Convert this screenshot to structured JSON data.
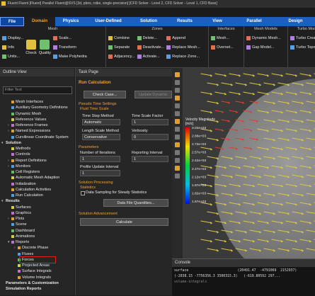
{
  "title_bar": "Fluent Fluent [Fluent] Parallel Fluent@SVS [3d, pbns, rstke, single-precision] [CFD Solver - Level 2, CFD Solver - Level 1, CFD Base]",
  "tabs": [
    "File",
    "Domain",
    "Physics",
    "User-Defined",
    "Solution",
    "Results",
    "View",
    "Parallel",
    "Design"
  ],
  "ribbon": {
    "groups": [
      {
        "title": "Mesh",
        "columns": [
          [
            "Display...",
            "Info",
            "Units..."
          ],
          [
            "Check"
          ],
          [
            "Quality"
          ],
          [
            "Scale...",
            "Transform",
            "Make Polyhedra"
          ]
        ]
      },
      {
        "title": "Zones",
        "columns": [
          [
            "Combine",
            "Separate",
            "Adjacency..."
          ],
          [
            "Delete...",
            "Deactivate...",
            "Activate..."
          ],
          [
            "Append",
            "Replace Mesh...",
            "Replace Zone..."
          ]
        ]
      },
      {
        "title": "Interfaces",
        "columns": [
          [
            "Mesh...",
            "Overset..."
          ]
        ]
      },
      {
        "title": "Mesh Models",
        "columns": [
          [
            "Dynamic Mesh...",
            "Gap Model..."
          ]
        ]
      },
      {
        "title": "Turbo Models",
        "columns": [
          [
            "Turbo Create",
            "Turbo Topology..."
          ]
        ]
      }
    ]
  },
  "outline": {
    "title": "Outline View",
    "filter": "Filter Text",
    "tree": [
      {
        "children": [
          {
            "label": "Mesh Interfaces"
          },
          {
            "label": "Auxiliary Geometry Definitions"
          },
          {
            "label": "Dynamic Mesh"
          },
          {
            "label": "Reference Values"
          },
          {
            "label": "Reference Frames"
          },
          {
            "label": "Named Expressions"
          },
          {
            "label": "Curvilinear Coordinate System"
          }
        ]
      },
      {
        "label": "Solution",
        "children": [
          {
            "label": "Methods"
          },
          {
            "label": "Controls"
          },
          {
            "label": "Report Definitions"
          },
          {
            "label": "Monitors"
          },
          {
            "label": "Cell Registers"
          },
          {
            "label": "Automatic Mesh Adaption"
          },
          {
            "label": "Initialization"
          },
          {
            "label": "Calculation Activities"
          },
          {
            "label": "Run Calculation"
          }
        ]
      },
      {
        "label": "Results",
        "children": [
          {
            "label": "Surfaces"
          },
          {
            "label": "Graphics"
          },
          {
            "label": "Plots"
          },
          {
            "label": "Scene"
          },
          {
            "label": "Dashboard"
          },
          {
            "label": "Animations"
          },
          {
            "label": "Reports",
            "children": [
              {
                "label": "Discrete Phase"
              },
              {
                "label": "Fluxes"
              },
              {
                "label": "Forces"
              },
              {
                "label": "Projected Areas"
              },
              {
                "label": "Surface Integrals"
              },
              {
                "label": "Volume Integrals"
              }
            ]
          }
        ]
      },
      {
        "label": "Parameters & Customization"
      },
      {
        "label": "Simulation Reports"
      }
    ]
  },
  "task_page": {
    "title": "Task Page",
    "heading": "Run Calculation",
    "buttons": [
      "Check Case...",
      "Update Dynamic Mesh..."
    ],
    "pseudo_time": {
      "title": "Pseudo Time Settings",
      "subtitle": "Fluid Time Scale",
      "time_step_method": {
        "label": "Time Step Method",
        "value": "Automatic"
      },
      "time_scale_factor": {
        "label": "Time Scale Factor",
        "value": 1
      },
      "length_scale_method": {
        "label": "Length Scale Method",
        "value": "Conservative"
      },
      "verbosity": {
        "label": "Verbosity",
        "value": 0
      }
    },
    "parameters": {
      "title": "Parameters",
      "iterations": {
        "label": "Number of Iterations",
        "value": 1
      },
      "reporting_interval": {
        "label": "Reporting Interval",
        "value": 1
      },
      "profile_update_interval": {
        "label": "Profile Update Interval",
        "value": 1
      }
    },
    "solution_processing": {
      "title": "Solution Processing",
      "statistics": "Statistics",
      "sampling": "Data Sampling for Steady Statistics",
      "data_file": "Data File Quantities..."
    },
    "solution_advancement": {
      "title": "Solution Advancement",
      "calculate": "Calculate"
    }
  },
  "graphics": {
    "legend_title": "Velocity Magnitude",
    "legend_unit": "[m/s]",
    "legend_labels": [
      "3.03e+03",
      "2.88e+03",
      "2.73e+03",
      "2.57e+03",
      "2.42e+03",
      "2.27e+03",
      "2.12e+03",
      "1.97e+03",
      "1.82e+03",
      "1.67e+03"
    ]
  },
  "console": {
    "title": "Console",
    "lines": [
      "surface                        (20491.47  -4791069  2152937)",
      "(-2038.15 -7756356.3 3500315.3)   (-619.80592 297...",
      "volume-integrals"
    ]
  }
}
